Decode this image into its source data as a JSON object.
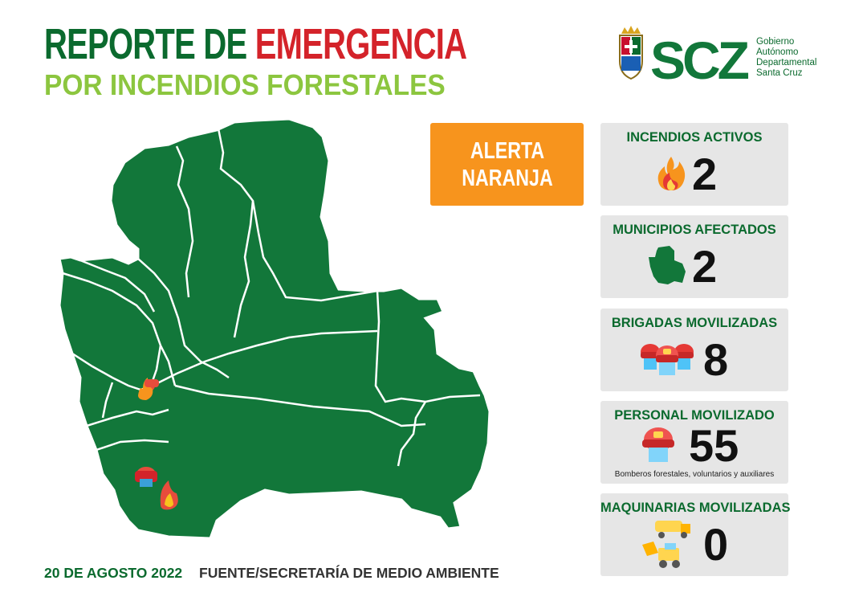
{
  "header": {
    "title_part1": "REPORTE DE ",
    "title_part2": "EMERGENCIA",
    "subtitle": "POR INCENDIOS FORESTALES"
  },
  "logo": {
    "mark": "SCZ",
    "line1": "Gobierno",
    "line2": "Autónomo",
    "line3": "Departamental",
    "line4": "Santa Cruz"
  },
  "alert": {
    "label": "ALERTA NARANJA",
    "color": "#f7941d"
  },
  "stats": [
    {
      "title": "INCENDIOS ACTIVOS",
      "value": "2",
      "icon": "fire-icon"
    },
    {
      "title": "MUNICIPIOS AFECTADOS",
      "value": "2",
      "icon": "map-region-icon"
    },
    {
      "title": "BRIGADAS MOVILIZADAS",
      "value": "8",
      "icon": "firefighter-group-icon"
    },
    {
      "title": "PERSONAL MOVILIZADO",
      "value": "55",
      "icon": "firefighter-icon",
      "note": "Bomberos forestales, voluntarios y auxiliares"
    },
    {
      "title": "MAQUINARIAS MOVILIZADAS",
      "value": "0",
      "icon": "machinery-icon"
    }
  ],
  "footer": {
    "date": "20 DE AGOSTO 2022",
    "source": "FUENTE/SECRETARÍA DE MEDIO AMBIENTE"
  },
  "colors": {
    "brand_green": "#0b6a2e",
    "light_green": "#8cc63f",
    "red": "#d4232a",
    "map_green": "#12773a"
  }
}
